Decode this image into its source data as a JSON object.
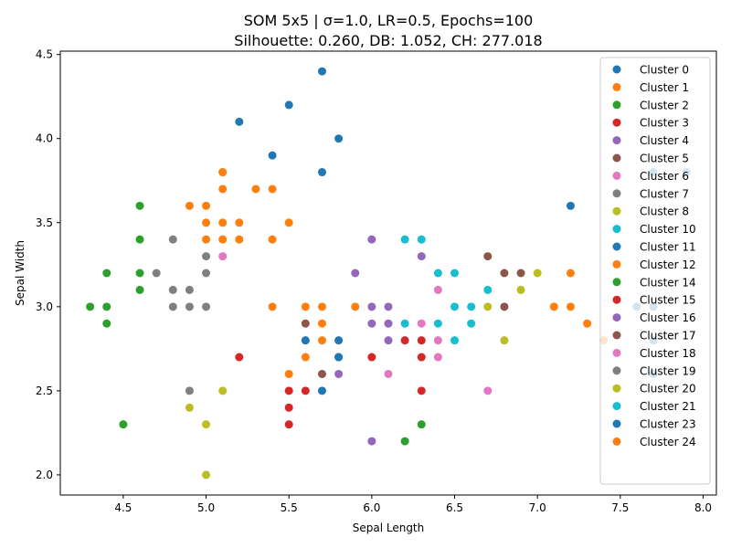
{
  "chart_data": {
    "type": "scatter",
    "title_line1": "SOM 5x5 | σ=1.0, LR=0.5, Epochs=100",
    "title_line2": "Silhouette: 0.260, DB: 1.052, CH: 277.018",
    "xlabel": "Sepal Length",
    "ylabel": "Sepal Width",
    "xlim": [
      4.12,
      8.08
    ],
    "ylim": [
      1.88,
      4.52
    ],
    "xticks": [
      "4.5",
      "5.0",
      "5.5",
      "6.0",
      "6.5",
      "7.0",
      "7.5",
      "8.0"
    ],
    "yticks": [
      "2.0",
      "2.5",
      "3.0",
      "3.5",
      "4.0",
      "4.5"
    ],
    "grid": false,
    "legend_position": "top-right",
    "series": [
      {
        "name": "Cluster 0",
        "color": "#1f77b4",
        "points": [
          [
            5.7,
            4.4
          ],
          [
            5.5,
            4.2
          ],
          [
            5.2,
            4.1
          ],
          [
            5.8,
            4.0
          ],
          [
            5.4,
            3.9
          ],
          [
            5.7,
            3.8
          ]
        ]
      },
      {
        "name": "Cluster 1",
        "color": "#ff7f0e",
        "points": [
          [
            5.1,
            3.8
          ],
          [
            5.1,
            3.8
          ],
          [
            5.1,
            3.7
          ],
          [
            5.3,
            3.7
          ],
          [
            5.4,
            3.7
          ],
          [
            4.9,
            3.6
          ],
          [
            5.0,
            3.6
          ],
          [
            5.0,
            3.5
          ],
          [
            5.1,
            3.5
          ],
          [
            5.2,
            3.5
          ],
          [
            5.5,
            3.5
          ],
          [
            5.0,
            3.4
          ],
          [
            5.1,
            3.4
          ],
          [
            5.2,
            3.4
          ],
          [
            5.4,
            3.4
          ]
        ]
      },
      {
        "name": "Cluster 2",
        "color": "#2ca02c",
        "points": [
          [
            4.6,
            3.6
          ],
          [
            4.6,
            3.4
          ],
          [
            4.4,
            3.2
          ],
          [
            4.6,
            3.2
          ],
          [
            4.3,
            3.0
          ],
          [
            4.4,
            3.0
          ],
          [
            4.6,
            3.1
          ],
          [
            4.4,
            2.9
          ],
          [
            4.5,
            2.3
          ]
        ]
      },
      {
        "name": "Cluster 3",
        "color": "#d62728",
        "points": [
          [
            5.2,
            2.7
          ],
          [
            5.6,
            2.5
          ],
          [
            5.5,
            2.5
          ],
          [
            5.5,
            2.4
          ],
          [
            5.5,
            2.3
          ],
          [
            6.0,
            2.7
          ],
          [
            6.2,
            2.8
          ],
          [
            6.3,
            2.8
          ],
          [
            6.3,
            2.7
          ],
          [
            6.3,
            2.5
          ]
        ]
      },
      {
        "name": "Cluster 4",
        "color": "#9467bd",
        "points": [
          [
            5.9,
            3.2
          ],
          [
            6.0,
            3.0
          ],
          [
            6.1,
            3.0
          ],
          [
            6.0,
            2.9
          ],
          [
            6.1,
            2.9
          ],
          [
            6.1,
            2.8
          ],
          [
            5.8,
            2.6
          ],
          [
            6.0,
            2.2
          ],
          [
            6.0,
            3.4
          ],
          [
            6.3,
            3.3
          ]
        ]
      },
      {
        "name": "Cluster 5",
        "color": "#8c564b",
        "points": [
          [
            5.6,
            2.9
          ],
          [
            5.7,
            2.6
          ],
          [
            6.7,
            3.3
          ],
          [
            6.8,
            3.2
          ],
          [
            6.9,
            3.2
          ],
          [
            6.8,
            3.0
          ]
        ]
      },
      {
        "name": "Cluster 6",
        "color": "#e377c2",
        "points": [
          [
            5.1,
            3.3
          ],
          [
            6.1,
            2.6
          ],
          [
            6.3,
            2.9
          ],
          [
            6.4,
            2.8
          ],
          [
            6.4,
            2.7
          ],
          [
            6.7,
            2.5
          ],
          [
            6.4,
            3.1
          ]
        ]
      },
      {
        "name": "Cluster 7",
        "color": "#7f7f7f",
        "points": [
          [
            4.8,
            3.4
          ],
          [
            4.7,
            3.2
          ],
          [
            4.8,
            3.1
          ],
          [
            4.9,
            3.1
          ],
          [
            4.8,
            3.0
          ],
          [
            4.9,
            3.0
          ],
          [
            5.0,
            3.0
          ],
          [
            5.0,
            3.2
          ],
          [
            5.0,
            3.3
          ],
          [
            4.9,
            2.5
          ]
        ]
      },
      {
        "name": "Cluster 8",
        "color": "#bcbd22",
        "points": [
          [
            4.9,
            2.4
          ],
          [
            5.0,
            2.3
          ],
          [
            5.0,
            2.0
          ],
          [
            5.1,
            2.5
          ],
          [
            6.7,
            3.0
          ],
          [
            6.8,
            2.8
          ],
          [
            6.9,
            3.1
          ],
          [
            7.0,
            3.2
          ]
        ]
      },
      {
        "name": "Cluster 10",
        "color": "#17becf",
        "points": [
          [
            6.2,
            3.4
          ],
          [
            6.3,
            3.4
          ],
          [
            6.4,
            3.2
          ],
          [
            6.5,
            3.2
          ],
          [
            6.5,
            3.0
          ],
          [
            6.6,
            3.0
          ],
          [
            6.7,
            3.1
          ],
          [
            6.4,
            2.9
          ],
          [
            6.6,
            2.9
          ],
          [
            6.2,
            2.9
          ],
          [
            6.5,
            2.8
          ]
        ]
      },
      {
        "name": "Cluster 11",
        "color": "#1f77b4",
        "points": [
          [
            5.6,
            2.8
          ],
          [
            5.8,
            2.8
          ],
          [
            5.8,
            2.7
          ],
          [
            5.8,
            2.7
          ],
          [
            5.7,
            2.5
          ]
        ]
      },
      {
        "name": "Cluster 12",
        "color": "#ff7f0e",
        "points": [
          [
            5.4,
            3.0
          ],
          [
            5.6,
            3.0
          ],
          [
            5.7,
            3.0
          ],
          [
            5.9,
            3.0
          ],
          [
            5.7,
            2.9
          ],
          [
            5.7,
            2.8
          ],
          [
            5.6,
            2.7
          ],
          [
            5.5,
            2.6
          ]
        ]
      },
      {
        "name": "Cluster 14",
        "color": "#2ca02c",
        "points": [
          [
            6.2,
            2.2
          ],
          [
            6.3,
            2.3
          ]
        ]
      },
      {
        "name": "Cluster 15",
        "color": "#d62728",
        "points": []
      },
      {
        "name": "Cluster 16",
        "color": "#9467bd",
        "points": []
      },
      {
        "name": "Cluster 17",
        "color": "#8c564b",
        "points": []
      },
      {
        "name": "Cluster 18",
        "color": "#e377c2",
        "points": []
      },
      {
        "name": "Cluster 19",
        "color": "#7f7f7f",
        "points": []
      },
      {
        "name": "Cluster 20",
        "color": "#bcbd22",
        "points": []
      },
      {
        "name": "Cluster 21",
        "color": "#17becf",
        "points": []
      },
      {
        "name": "Cluster 23",
        "color": "#1f77b4",
        "points": [
          [
            7.2,
            3.6
          ],
          [
            7.7,
            3.8
          ],
          [
            7.9,
            3.8
          ],
          [
            7.6,
            3.0
          ],
          [
            7.7,
            3.0
          ],
          [
            7.7,
            2.8
          ],
          [
            7.7,
            2.6
          ]
        ]
      },
      {
        "name": "Cluster 24",
        "color": "#ff7f0e",
        "points": [
          [
            7.2,
            3.2
          ],
          [
            7.1,
            3.0
          ],
          [
            7.2,
            3.0
          ],
          [
            7.3,
            2.9
          ],
          [
            7.4,
            2.8
          ]
        ]
      }
    ]
  }
}
